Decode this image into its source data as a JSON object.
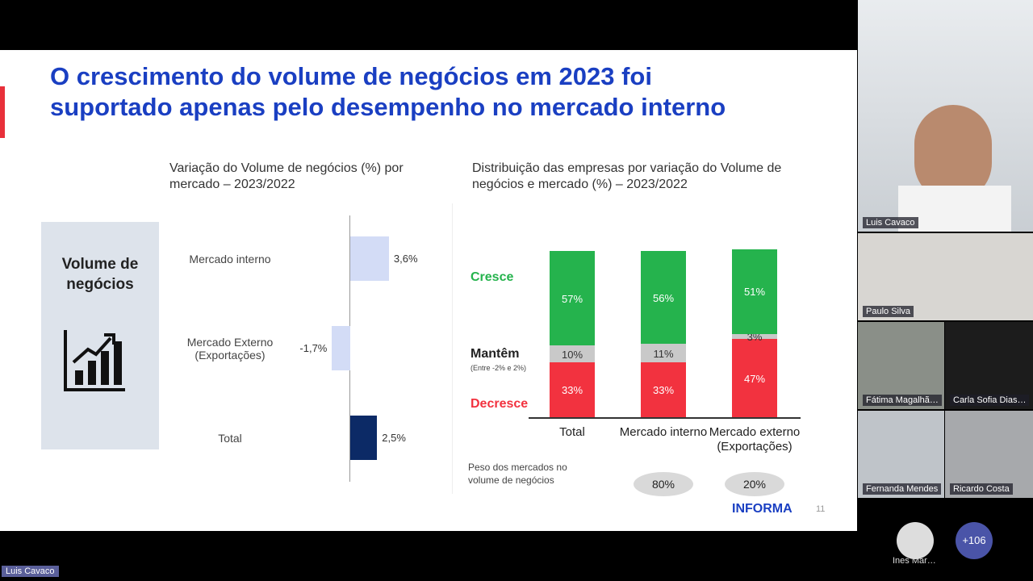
{
  "slide": {
    "title": "O crescimento do volume de negócios em 2023 foi suportado apenas pelo desempenho no mercado interno",
    "side_label": "Volume de negócios",
    "logo": "INFORMA",
    "page_number": "11",
    "chart_left": {
      "type": "hbar",
      "title": "Variação do Volume de negócios (%) por mercado – 2023/2022",
      "categories": [
        "Mercado interno",
        "Mercado Externo (Exportações)",
        "Total"
      ],
      "values": [
        3.6,
        -1.7,
        2.5
      ],
      "value_labels": [
        "3,6%",
        "-1,7%",
        "2,5%"
      ],
      "colors": [
        "#d3dcf6",
        "#d3dcf6",
        "#0c2a66"
      ]
    },
    "chart_right": {
      "type": "stacked_bar",
      "title": "Distribuição das empresas por variação do Volume de negócios e mercado (%) – 2023/2022",
      "categories": [
        "Total",
        "Mercado interno",
        "Mercado externo (Exportações)"
      ],
      "series": [
        {
          "name": "Decresce",
          "color": "#f2323f",
          "values": [
            33,
            33,
            47
          ],
          "value_labels": [
            "33%",
            "33%",
            "47%"
          ]
        },
        {
          "name": "Mantêm",
          "color": "#c9c9c9",
          "values": [
            10,
            11,
            3
          ],
          "value_labels": [
            "10%",
            "11%",
            "3%"
          ]
        },
        {
          "name": "Cresce",
          "color": "#25b34d",
          "values": [
            57,
            56,
            51
          ],
          "value_labels": [
            "57%",
            "56%",
            "51%"
          ]
        }
      ],
      "series_note": "(Entre -2% e 2%)",
      "weights_label": "Peso dos mercados no volume de negócios",
      "weights": [
        null,
        80,
        20
      ],
      "weights_labels": [
        null,
        "80%",
        "20%"
      ]
    }
  },
  "call": {
    "participants": [
      "Luis Cavaco",
      "Paulo Silva",
      "Fátima Magalhã…",
      "Carla Sofia Dias…",
      "Fernanda Mendes",
      "Ricardo Costa"
    ],
    "bottom_avatar": "Ines Mar…",
    "more": "+106",
    "presenter": "Luis Cavaco"
  }
}
